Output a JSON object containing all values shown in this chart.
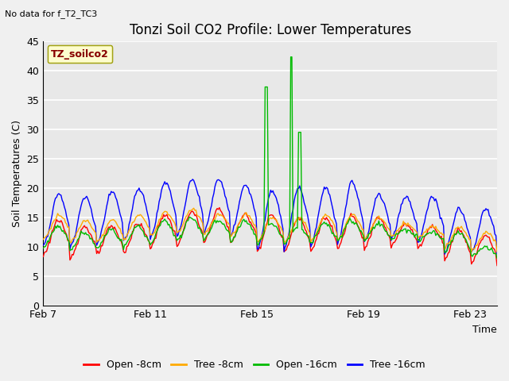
{
  "title": "Tonzi Soil CO2 Profile: Lower Temperatures",
  "subtitle": "No data for f_T2_TC3",
  "ylabel": "Soil Temperatures (C)",
  "xlabel": "Time",
  "legend_label": "TZ_soilco2",
  "ylim": [
    0,
    45
  ],
  "yticks": [
    0,
    5,
    10,
    15,
    20,
    25,
    30,
    35,
    40,
    45
  ],
  "xtick_labels": [
    "Feb 7",
    "Feb 11",
    "Feb 15",
    "Feb 19",
    "Feb 23"
  ],
  "xtick_pos": [
    0,
    4,
    8,
    12,
    16
  ],
  "series_labels": [
    "Open -8cm",
    "Tree -8cm",
    "Open -16cm",
    "Tree -16cm"
  ],
  "series_colors": [
    "#ff0000",
    "#ffaa00",
    "#00bb00",
    "#0000ff"
  ],
  "fig_bg_color": "#f0f0f0",
  "plot_bg_color": "#e8e8e8",
  "grid_color": "#ffffff",
  "title_fontsize": 12,
  "label_fontsize": 9,
  "tick_fontsize": 9,
  "n_days": 17,
  "pts_per_day": 24,
  "spike1_day": 8.35,
  "spike1_val": 37.2,
  "spike2_day": 9.3,
  "spike2_val": 42.3,
  "spike3_day": 9.6,
  "spike3_val": 29.5
}
